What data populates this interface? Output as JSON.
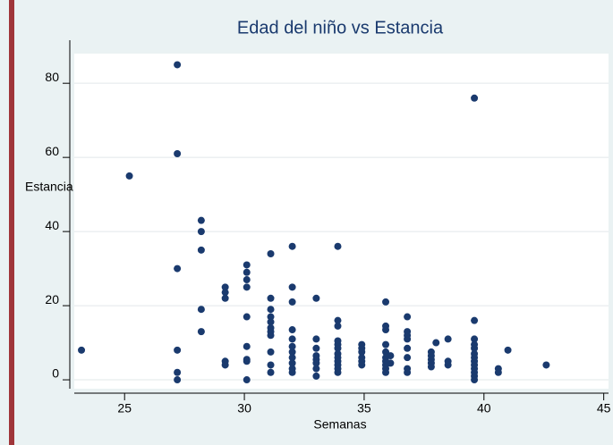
{
  "chart_data": {
    "type": "scatter",
    "title": "Edad del niño vs Estancia",
    "xlabel": "Semanas",
    "ylabel": "Estancia",
    "color": "#1a3a6e",
    "grid": true,
    "xlim": [
      22.9,
      45.2
    ],
    "ylim": [
      -2.4,
      88
    ],
    "xticks": [
      25,
      30,
      35,
      40,
      45
    ],
    "yticks": [
      0,
      20,
      40,
      60,
      80
    ],
    "x": [
      23.2,
      25.2,
      27.2,
      27.2,
      27.2,
      27.2,
      27.2,
      27.2,
      28.2,
      28.2,
      28.2,
      28.2,
      28.2,
      29.2,
      29.2,
      29.2,
      29.2,
      29.2,
      30.1,
      30.1,
      30.1,
      30.1,
      30.1,
      30.1,
      30.1,
      30.1,
      30.1,
      31.1,
      31.1,
      31.1,
      31.1,
      31.1,
      31.1,
      31.1,
      31.1,
      31.1,
      31.1,
      31.1,
      32.0,
      32.0,
      32.0,
      32.0,
      32.0,
      32.0,
      32.0,
      32.0,
      32.0,
      32.0,
      32.0,
      33.0,
      33.0,
      33.0,
      33.0,
      33.0,
      33.0,
      33.0,
      33.0,
      33.9,
      33.9,
      33.9,
      33.9,
      33.9,
      33.9,
      33.9,
      33.9,
      33.9,
      33.9,
      33.9,
      33.9,
      34.9,
      34.9,
      34.9,
      34.9,
      34.9,
      34.9,
      35.9,
      35.9,
      35.9,
      35.9,
      35.9,
      35.9,
      35.9,
      35.9,
      35.9,
      35.9,
      36.1,
      36.1,
      36.8,
      36.8,
      36.8,
      36.8,
      36.8,
      36.8,
      36.8,
      36.8,
      37.8,
      37.8,
      37.8,
      37.8,
      37.8,
      38.0,
      38.5,
      38.5,
      38.5,
      39.6,
      39.6,
      39.6,
      39.6,
      39.6,
      39.6,
      39.6,
      39.6,
      39.6,
      39.6,
      39.6,
      39.6,
      39.6,
      40.6,
      40.6,
      41.0,
      42.6
    ],
    "values": [
      8,
      55,
      85,
      61,
      30,
      8,
      2,
      0,
      43,
      40,
      35,
      19,
      13,
      25,
      23.6,
      22,
      5,
      4,
      31,
      29,
      27,
      25,
      17,
      9,
      5.5,
      5,
      0,
      34,
      22,
      19,
      17,
      15.6,
      14,
      13,
      12,
      7.5,
      4,
      2,
      36,
      25,
      21,
      13.5,
      11,
      9,
      7.5,
      6,
      4.5,
      3,
      2,
      22,
      11,
      8.5,
      6.5,
      5.5,
      4.5,
      3,
      1,
      36,
      16,
      14.5,
      10.5,
      9.5,
      8.5,
      7,
      6,
      5,
      4,
      3,
      2,
      9.5,
      8.5,
      7.5,
      6,
      5,
      4,
      21,
      14.5,
      13.5,
      9.5,
      7.5,
      6,
      5,
      4,
      3,
      2,
      6.5,
      4.5,
      17,
      13,
      12,
      11,
      8.5,
      6,
      3,
      2,
      7.5,
      6.5,
      5.5,
      4.5,
      3.5,
      10,
      11,
      5,
      4,
      76,
      16,
      11,
      9.5,
      8.5,
      7,
      6,
      5,
      4,
      3,
      2,
      1,
      0,
      3,
      2,
      8,
      4
    ]
  }
}
